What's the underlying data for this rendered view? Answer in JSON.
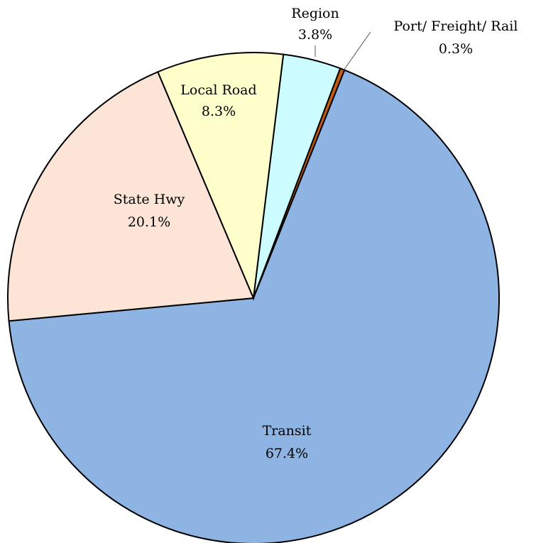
{
  "chart_data": {
    "type": "pie",
    "categories": [
      "Region",
      "Port/ Freight/ Rail",
      "Transit",
      "State Hwy",
      "Local Road"
    ],
    "values": [
      3.8,
      0.3,
      67.4,
      20.1,
      8.3
    ],
    "value_labels": [
      "3.8%",
      "0.3%",
      "67.4%",
      "20.1%",
      "8.3%"
    ],
    "colors": [
      "#ccfcff",
      "#c55a11",
      "#8eb4e3",
      "#fce4d6",
      "#ffffcc"
    ]
  }
}
